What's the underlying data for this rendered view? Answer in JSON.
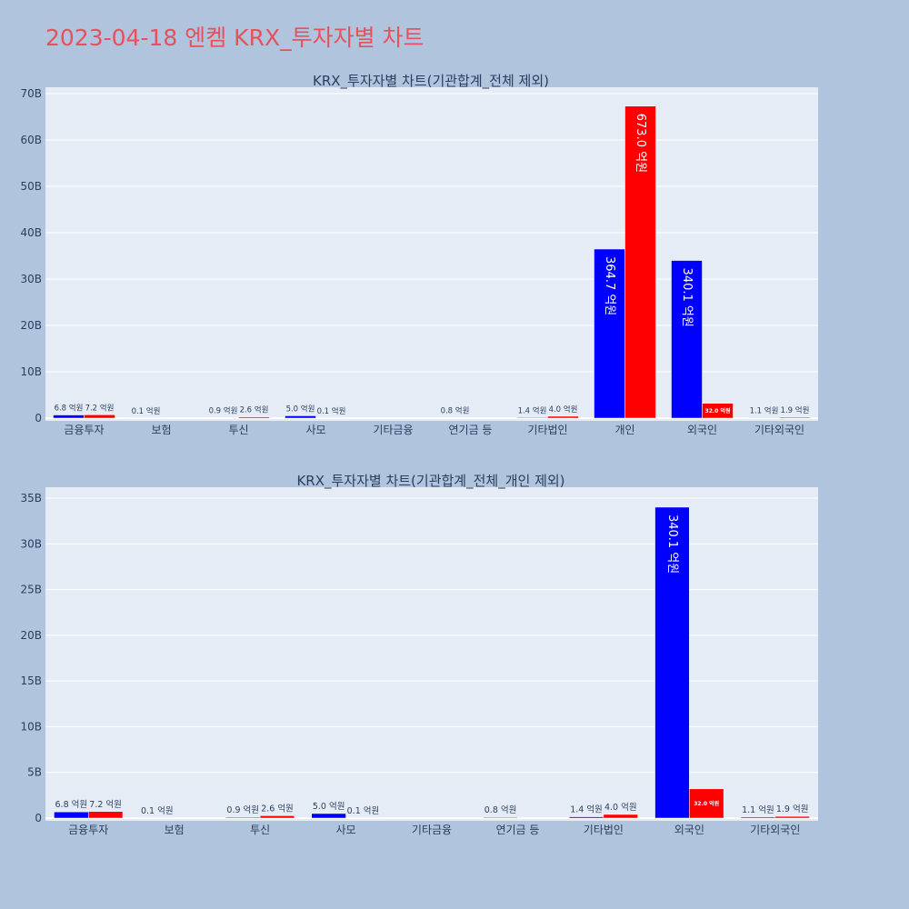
{
  "page_title": "2023-04-18 엔켐 KRX_투자자별 차트",
  "colors": {
    "background": "#b0c4de",
    "plot_bg": "#e5ecf6",
    "title": "#e8505b",
    "sell": "#0000ff",
    "buy": "#ff0000"
  },
  "chart_data": [
    {
      "type": "bar",
      "title": "KRX_투자자별 차트(기관합계_전체 제외)",
      "categories": [
        "금융투자",
        "보험",
        "투신",
        "사모",
        "기타금융",
        "연기금 등",
        "기타법인",
        "개인",
        "외국인",
        "기타외국인"
      ],
      "ylim": [
        0,
        70
      ],
      "yticks": [
        0,
        10,
        20,
        30,
        40,
        50,
        60,
        70
      ],
      "ytick_labels": [
        "0",
        "10B",
        "20B",
        "30B",
        "40B",
        "50B",
        "60B",
        "70B"
      ],
      "grid": true,
      "series": [
        {
          "color": "#0000ff",
          "values": [
            0.68,
            0.01,
            0.09,
            0.5,
            0,
            0.08,
            0.14,
            36.47,
            34.01,
            0.11
          ],
          "labels": [
            "6.8 억원",
            "0.1 억원",
            "0.9 억원",
            "5.0 억원",
            "",
            "0.8 억원",
            "1.4 억원",
            "364.7 억원",
            "340.1 억원",
            "1.1 억원"
          ]
        },
        {
          "color": "#ff0000",
          "values": [
            0.72,
            0,
            0.26,
            0.01,
            0,
            0,
            0.4,
            67.3,
            3.2,
            0.19
          ],
          "labels": [
            "7.2 억원",
            "",
            "2.6 억원",
            "0.1 억원",
            "",
            "",
            "4.0 억원",
            "673.0 억원",
            "32.0 억원",
            "1.9 억원"
          ]
        }
      ]
    },
    {
      "type": "bar",
      "title": "KRX_투자자별 차트(기관합계_전체_개인 제외)",
      "categories": [
        "금융투자",
        "보험",
        "투신",
        "사모",
        "기타금융",
        "연기금 등",
        "기타법인",
        "외국인",
        "기타외국인"
      ],
      "ylim": [
        0,
        35
      ],
      "yticks": [
        0,
        5,
        10,
        15,
        20,
        25,
        30,
        35
      ],
      "ytick_labels": [
        "0",
        "5B",
        "10B",
        "15B",
        "20B",
        "25B",
        "30B",
        "35B"
      ],
      "grid": true,
      "series": [
        {
          "color": "#0000ff",
          "values": [
            0.68,
            0.01,
            0.09,
            0.5,
            0,
            0.08,
            0.14,
            34.01,
            0.11
          ],
          "labels": [
            "6.8 억원",
            "0.1 억원",
            "0.9 억원",
            "5.0 억원",
            "",
            "0.8 억원",
            "1.4 억원",
            "340.1 억원",
            "1.1 억원"
          ]
        },
        {
          "color": "#ff0000",
          "values": [
            0.72,
            0,
            0.26,
            0.01,
            0,
            0,
            0.4,
            3.2,
            0.19
          ],
          "labels": [
            "7.2 억원",
            "",
            "2.6 억원",
            "0.1 억원",
            "",
            "",
            "4.0 억원",
            "32.0 억원",
            "1.9 억원"
          ]
        }
      ]
    }
  ]
}
